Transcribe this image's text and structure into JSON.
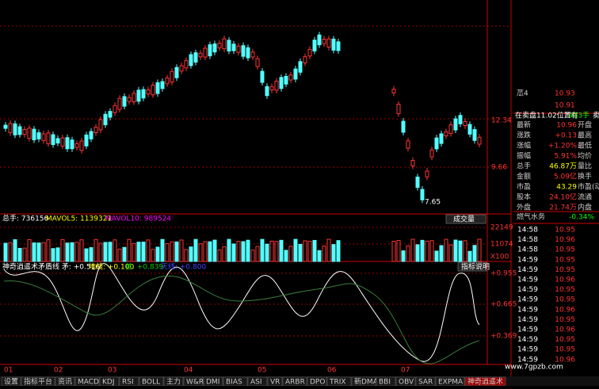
{
  "price_panel": {
    "yticks": [
      "12.34",
      "9.66"
    ],
    "low_label": "7.65"
  },
  "volume_panel": {
    "total": "总手: 736156",
    "mavol5": "MAVOL5: 1139321",
    "mavol10": "MAVOL10: 989524",
    "button": "成交量",
    "yticks": [
      "22149",
      "11074",
      "X100"
    ]
  },
  "indicator_panel": {
    "name": "神奇逍遥术矛盾线 矛: +0.516",
    "di": "地线: +0.100",
    "shou": "首: +0.839",
    "tian": "天线: +0.800",
    "button": "指标说明",
    "yticks": [
      "+0.955",
      "+0.665",
      "+0.369"
    ]
  },
  "x_axis": [
    "01",
    "02",
    "03",
    "04",
    "05",
    "06",
    "07"
  ],
  "tabs": [
    "设置",
    "指标平台",
    "资讯",
    "MACD",
    "KDJ",
    "RSI",
    "BOLL",
    "主力",
    "W&R",
    "DMI",
    "BIAS",
    "ASI",
    "VR",
    "ARBR",
    "DPO",
    "TRIX",
    "新DMA",
    "BBI",
    "OBV",
    "SAR",
    "EXPMA",
    "神奇逍遥术"
  ],
  "quote": {
    "ask4": [
      "苽4",
      "10.93"
    ],
    "ask_next": "10.91",
    "note": "在卖盘11.02位置有",
    "note_qty": "433手",
    "note_tail": "卖",
    "stats": [
      [
        "最新",
        "10.96",
        "开盘"
      ],
      [
        "涨跌",
        "+0.13",
        "最高"
      ],
      [
        "涨幅",
        "+1.20%",
        "最低"
      ],
      [
        "振幅",
        "5.91%",
        "均价"
      ],
      [
        "总手",
        "46.87万",
        "量比"
      ],
      [
        "金额",
        "5.09亿",
        "换手"
      ],
      [
        "市盈",
        "43.29",
        "市盈(动)"
      ],
      [
        "股本",
        "24.10亿",
        "流通"
      ],
      [
        "外盘",
        "21.74万",
        "内盘"
      ]
    ],
    "sector": [
      "燃气水务",
      "-0.34%"
    ],
    "trades": [
      [
        "14:58",
        "10.95"
      ],
      [
        "14:58",
        "10.96"
      ],
      [
        "14:58",
        "10.95"
      ],
      [
        "14:59",
        "10.95"
      ],
      [
        "14:59",
        "10.95"
      ],
      [
        "14:59",
        "10.96"
      ],
      [
        "14:59",
        "10.95"
      ],
      [
        "14:59",
        "10.95"
      ],
      [
        "14:59",
        "10.96"
      ],
      [
        "14:59",
        "10.95"
      ],
      [
        "14:59",
        "10.96"
      ],
      [
        "14:59",
        "10.95"
      ],
      [
        "14:59",
        "10.95"
      ],
      [
        "14:59",
        "10.96"
      ]
    ]
  },
  "watermark": "www.7gpzb.com"
}
